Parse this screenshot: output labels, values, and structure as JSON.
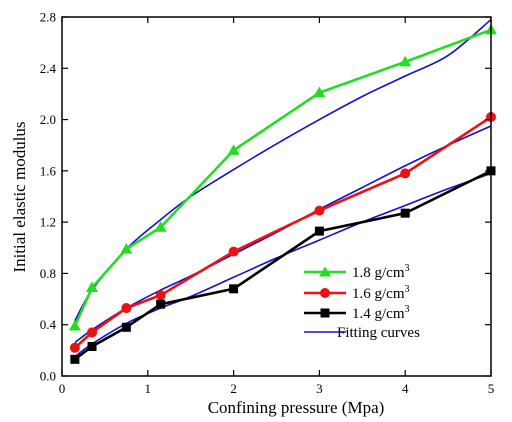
{
  "chart_data": {
    "type": "line",
    "xlabel": "Confining pressure (Mpa)",
    "ylabel": "Initial elastic modulus",
    "xlim": [
      0,
      5
    ],
    "ylim": [
      0,
      2.8
    ],
    "xticks": [
      0,
      1,
      2,
      3,
      4,
      5
    ],
    "xtick_labels": [
      "0",
      "1",
      "2",
      "3",
      "4",
      "5"
    ],
    "yticks": [
      0,
      0.4,
      0.8,
      1.2,
      1.6,
      2.0,
      2.4,
      2.8
    ],
    "ytick_labels": [
      "0.0",
      "0.4",
      "0.8",
      "1.2",
      "1.6",
      "2.0",
      "2.4",
      "2.8"
    ],
    "grid": false,
    "legend_position": "center-right",
    "series": [
      {
        "name": "1.8 g/cm",
        "name_sup": "3",
        "color": "#22dd22",
        "marker": "triangle",
        "x": [
          0.15,
          0.35,
          0.75,
          1.15,
          2.0,
          3.0,
          4.0,
          5.0
        ],
        "y": [
          0.39,
          0.69,
          0.99,
          1.16,
          1.76,
          2.21,
          2.45,
          2.7
        ]
      },
      {
        "name": "1.6 g/cm",
        "name_sup": "3",
        "color": "#ee1111",
        "marker": "circle",
        "x": [
          0.15,
          0.35,
          0.75,
          1.15,
          2.0,
          3.0,
          4.0,
          5.0
        ],
        "y": [
          0.22,
          0.34,
          0.53,
          0.63,
          0.97,
          1.29,
          1.58,
          2.02
        ]
      },
      {
        "name": "1.4 g/cm",
        "name_sup": "3",
        "color": "#000000",
        "marker": "square",
        "x": [
          0.15,
          0.35,
          0.75,
          1.15,
          2.0,
          3.0,
          4.0,
          5.0
        ],
        "y": [
          0.13,
          0.23,
          0.38,
          0.56,
          0.68,
          1.13,
          1.27,
          1.6
        ]
      }
    ],
    "fitting_curves": {
      "name": "Fitting curves",
      "color": "#1111cc",
      "curves": [
        {
          "x": [
            0.15,
            0.35,
            0.75,
            1.15,
            1.5,
            2.0,
            2.5,
            3.0,
            3.5,
            4.0,
            4.5,
            5.0
          ],
          "y": [
            0.43,
            0.67,
            0.99,
            1.22,
            1.4,
            1.61,
            1.81,
            2.0,
            2.18,
            2.34,
            2.5,
            2.78
          ]
        },
        {
          "x": [
            0.15,
            0.35,
            0.75,
            1.15,
            1.5,
            2.0,
            2.5,
            3.0,
            3.5,
            4.0,
            4.5,
            5.0
          ],
          "y": [
            0.26,
            0.36,
            0.53,
            0.67,
            0.78,
            0.95,
            1.12,
            1.3,
            1.47,
            1.64,
            1.8,
            1.95
          ]
        },
        {
          "x": [
            0.15,
            0.35,
            0.75,
            1.15,
            1.5,
            2.0,
            2.5,
            3.0,
            3.5,
            4.0,
            4.5,
            5.0
          ],
          "y": [
            0.15,
            0.25,
            0.41,
            0.53,
            0.62,
            0.77,
            0.92,
            1.06,
            1.2,
            1.33,
            1.46,
            1.58
          ]
        }
      ]
    }
  }
}
